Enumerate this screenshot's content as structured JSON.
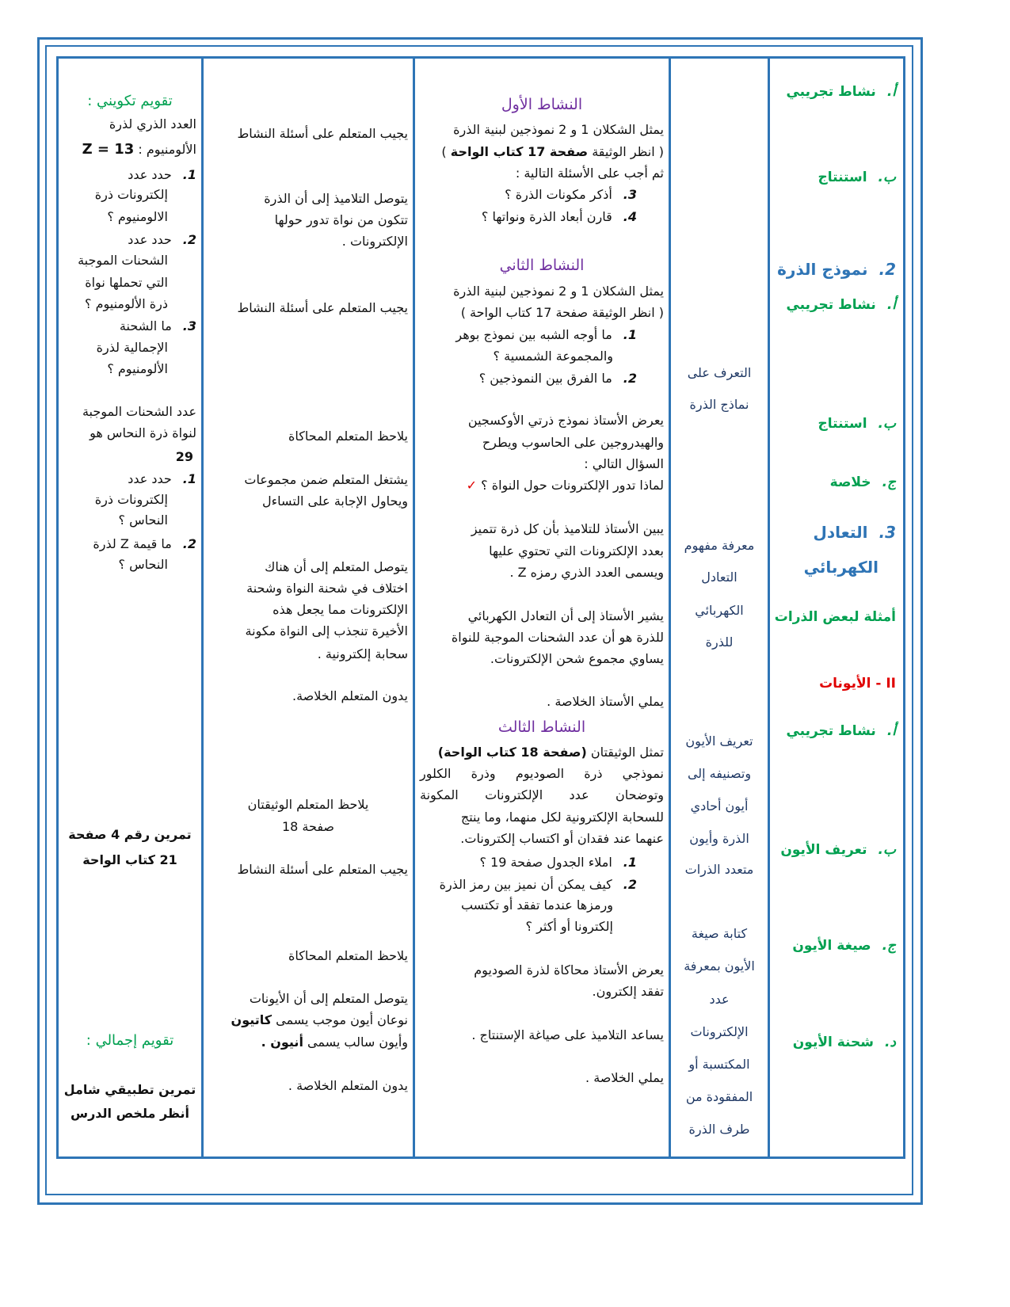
{
  "colors": {
    "border": "#2e75b6",
    "green": "#00a050",
    "blue": "#2e74b5",
    "red": "#e00000",
    "purple": "#7030a0"
  },
  "sections": [
    {
      "num": "أ.",
      "text": "نشاط تجريبي"
    },
    {
      "num": "ب.",
      "text": "استنتاج"
    },
    {
      "num": "2.",
      "text": "نموذج الذرة"
    },
    {
      "num": "أ.",
      "text": "نشاط تجريبي"
    },
    {
      "num": "ب.",
      "text": "استنتاج"
    },
    {
      "num": "ج.",
      "text": "خلاصة"
    },
    {
      "num": "3.",
      "text": "التعادل",
      "text2": "الكهربائي"
    },
    {
      "text": "أمثلة لبعض الذرات"
    },
    {
      "text": "II - الأيونات"
    },
    {
      "num": "أ.",
      "text": "نشاط تجريبي"
    },
    {
      "num": "ب.",
      "text": "تعريف الأيون"
    },
    {
      "num": "ج.",
      "text": "صيغة الأيون"
    },
    {
      "num": "د.",
      "text": "شحنة الأيون"
    }
  ],
  "objectives": [
    "التعرف على",
    "نماذج الذرة",
    "معرفة مفهوم",
    "التعادل",
    "الكهربائي",
    "للذرة",
    "تعريف الأيون",
    "وتصنيفه إلى",
    "أيون أحادي",
    "الذرة وأيون",
    "متعدد الذرات",
    "كتابة صيغة",
    "الأيون بمعرفة",
    "عدد",
    "الإلكترونات",
    "المكتسبة أو",
    "المفقودة من",
    "طرف الذرة"
  ],
  "teacher": {
    "a1_title": "النشاط الأول",
    "a1": [
      "يمثل الشكلان 1 و 2 نموذجين لبنية الذرة",
      "( انظر الوثيقة ",
      "صفحة 17 كتاب الواحة",
      " )",
      "ثم أجب على الأسئلة التالية :"
    ],
    "a1_q": [
      {
        "num": "3.",
        "text": "أذكر مكونات الذرة ؟"
      },
      {
        "num": "4.",
        "text": "قارن أبعاد الذرة ونواتها ؟"
      }
    ],
    "a2_title": "النشاط الثاني",
    "a2": [
      "يمثل الشكلان 1 و 2 نموذجين لبنية الذرة",
      "( انظر الوثيقة صفحة 17 كتاب الواحة )"
    ],
    "a2_q": [
      {
        "num": "1.",
        "text": "ما أوجه الشبه بين نموذج بوهر",
        "text2": "والمجموعة الشمسية ؟"
      },
      {
        "num": "2.",
        "text": "ما الفرق بين النموذجين ؟"
      }
    ],
    "p1": [
      "يعرض الأستاذ نموذج ذرتي الأوكسجين",
      "والهيدروجين على الحاسوب ويطرح",
      "السؤال التالي :"
    ],
    "check": "✓",
    "check_q": "لماذا تدور الإلكترونات حول النواة ؟",
    "p2": [
      "يبين الأستاذ للتلاميذ بأن كل ذرة تتميز",
      "بعدد الإلكترونات التي تحتوي عليها",
      "ويسمى العدد الذري رمزه Z ."
    ],
    "p3": [
      "يشير الأستاذ إلى أن التعادل الكهربائي",
      "للذرة هو أن عدد الشحنات الموجبة للنواة",
      "يساوي مجموع شحن الإلكترونات."
    ],
    "p4": "يملي الأستاذ الخلاصة .",
    "a3_title": "النشاط الثالث",
    "a3": [
      "تمثل الوثيقتان ",
      "(صفحة 18 كتاب الواحة)",
      "نموذجي ذرة الصوديوم وذرة الكلور",
      "وتوضحان عدد الإلكترونات المكونة",
      "للسحابة الإلكترونية لكل منهما، وما ينتج",
      "عنهما عند فقدان أو اكتساب إلكترونات."
    ],
    "a3_q": [
      {
        "num": "1.",
        "text": "املاء الجدول صفحة 19 ؟"
      },
      {
        "num": "2.",
        "text": "كيف يمكن أن نميز بين رمز الذرة",
        "text2": "ورمزها عندما تفقد أو تكتسب",
        "text3": "إلكترونا أو أكثر ؟"
      }
    ],
    "p5": [
      "يعرض الأستاذ محاكاة لذرة الصوديوم",
      "تفقد إلكترون."
    ],
    "p6": "يساعد التلاميذ على صياغة الإستنتاج .",
    "p7": "يملي الخلاصة ."
  },
  "learner": {
    "l1": "يجيب المتعلم على أسئلة النشاط",
    "l2": [
      "يتوصل التلاميذ إلى أن الذرة",
      "تتكون من نواة تدور حولها",
      "الإلكترونات ."
    ],
    "l3": "يجيب المتعلم على أسئلة النشاط",
    "l4": "يلاحظ المتعلم المحاكاة",
    "l5": [
      "يشتغل المتعلم ضمن مجموعات",
      "ويحاول الإجابة على التساءل"
    ],
    "l6": [
      "يتوصل المتعلم إلى أن هناك",
      "اختلاف في شحنة النواة وشحنة",
      "الإلكترونات مما يجعل هذه",
      "الأخيرة تنجذب إلى النواة مكونة",
      "سحابة إلكترونية ."
    ],
    "l7": "يدون المتعلم الخلاصة.",
    "l8": [
      "يلاحظ المتعلم الوثيقتان",
      "صفحة 18"
    ],
    "l9": "يجيب المتعلم على أسئلة النشاط",
    "l10": "يلاحظ المتعلم المحاكاة",
    "l11": [
      "يتوصل المتعلم إلى أن الأيونات",
      "نوعان أيون موجب يسمى ",
      "كاتيون",
      "وأيون سالب يسمى ",
      "أنيون ."
    ],
    "l12": "يدون المتعلم الخلاصة ."
  },
  "evaluation": {
    "formative_title": "تقويم تكويني :",
    "e1": [
      "العدد الذري لذرة",
      "الألومنيوم : ",
      "Z = 13"
    ],
    "q1": [
      {
        "num": "1.",
        "lines": [
          "حدد عدد",
          "إلكترونات ذرة",
          "الالومنيوم ؟"
        ]
      },
      {
        "num": "2.",
        "lines": [
          "حدد عدد",
          "الشحنات الموجبة",
          "التي تحملها نواة",
          "ذرة الألومنيوم ؟"
        ]
      },
      {
        "num": "3.",
        "lines": [
          "ما الشحنة",
          "الإجمالية لذرة",
          "الألومنيوم ؟"
        ]
      }
    ],
    "e2": [
      "عدد الشحنات الموجبة",
      "لنواة ذرة النحاس هو",
      "29"
    ],
    "q2": [
      {
        "num": "1.",
        "lines": [
          "حدد عدد",
          "إلكترونات ذرة",
          "النحاس ؟"
        ]
      },
      {
        "num": "2.",
        "lines": [
          "ما قيمة Z لذرة",
          "النحاس ؟"
        ]
      }
    ],
    "exercise": [
      "تمرين رقم 4 صفحة",
      "21 كتاب الواحة"
    ],
    "summative_title": "تقويم إجمالي :",
    "final": [
      "تمرين تطبيقي شامل",
      "أنظر ملخص الدرس"
    ]
  }
}
